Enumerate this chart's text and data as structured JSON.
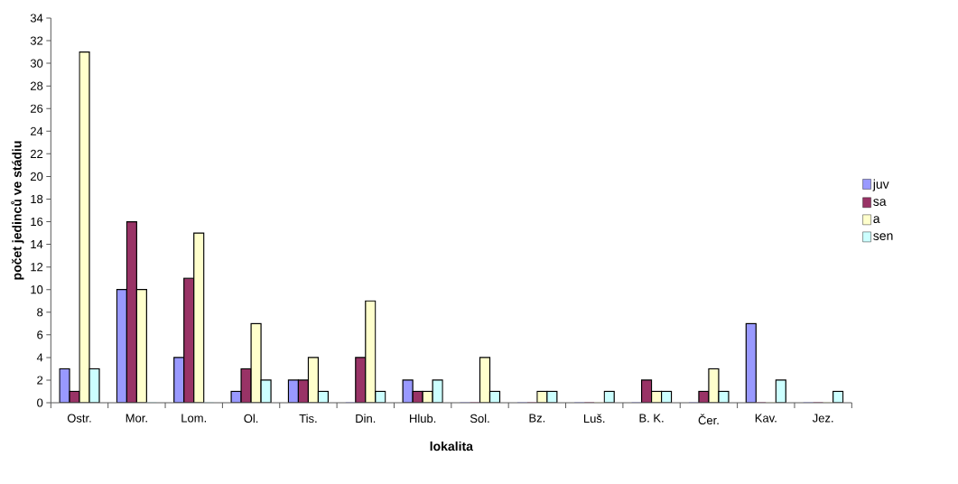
{
  "chart_data": {
    "type": "bar",
    "xlabel": "lokalita",
    "ylabel": "počet jedinců ve stádiu",
    "categories": [
      "Ostr.",
      "Mor.",
      "Lom.",
      "Ol.",
      "Tis.",
      "Din.",
      "Hlub.",
      "Sol.",
      "Bz.",
      "Luš.",
      "B. K.",
      "Čer.",
      "Kav.",
      "Jez."
    ],
    "series": [
      {
        "name": "juv",
        "color": "#9999ff",
        "values": [
          3,
          10,
          4,
          1,
          2,
          0,
          2,
          0,
          0,
          0,
          0,
          0,
          7,
          0
        ]
      },
      {
        "name": "sa",
        "color": "#993366",
        "values": [
          1,
          16,
          11,
          3,
          2,
          4,
          1,
          0,
          0,
          0,
          2,
          1,
          0,
          0
        ]
      },
      {
        "name": "a",
        "color": "#ffffcc",
        "values": [
          31,
          10,
          15,
          7,
          4,
          9,
          1,
          4,
          1,
          0,
          1,
          3,
          0,
          0
        ]
      },
      {
        "name": "sen",
        "color": "#ccffff",
        "values": [
          3,
          0,
          0,
          2,
          1,
          1,
          2,
          1,
          1,
          1,
          1,
          1,
          2,
          1
        ]
      }
    ],
    "ylim": [
      0,
      34
    ],
    "yticks": [
      0,
      2,
      4,
      6,
      8,
      10,
      12,
      14,
      16,
      18,
      20,
      22,
      24,
      26,
      28,
      30,
      32,
      34
    ],
    "grid": false,
    "legend": "right"
  }
}
